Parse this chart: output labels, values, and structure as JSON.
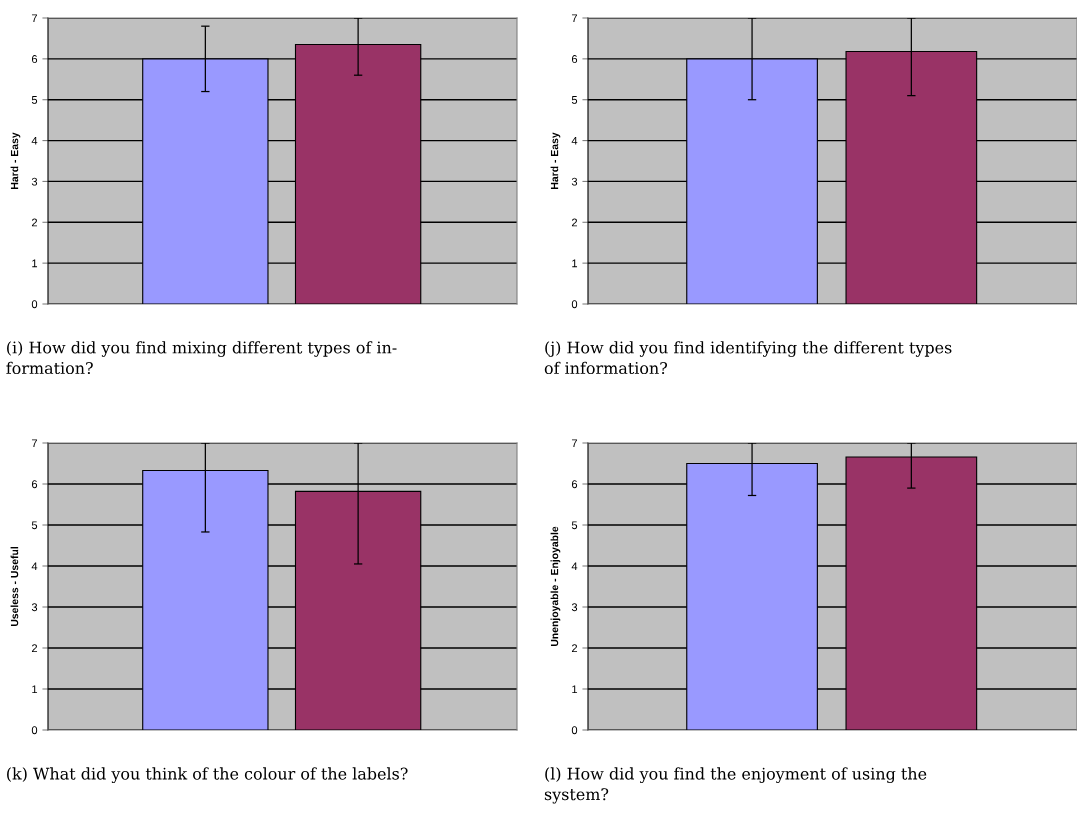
{
  "chart_data": [
    {
      "type": "bar",
      "categories": [
        null,
        null
      ],
      "series": [
        {
          "color": "#9999ff",
          "values": [
            6.0,
            null
          ],
          "errors": [
            [
              5.2,
              6.8
            ],
            null
          ]
        },
        {
          "color": "#993366",
          "values": [
            null,
            6.35
          ],
          "errors": [
            null,
            [
              5.6,
              7
            ]
          ]
        }
      ],
      "ylabel": "Hard - Easy",
      "ylim": [
        0,
        7
      ],
      "yticks": [
        0,
        1,
        2,
        3,
        4,
        5,
        6,
        7
      ],
      "grid": "y",
      "tick_labels": "y",
      "annotations": [
        "(i) How did you find mixing different types of in-\nformation?"
      ]
    },
    {
      "type": "bar",
      "categories": [
        null,
        null
      ],
      "series": [
        {
          "color": "#9999ff",
          "values": [
            6.0,
            null
          ],
          "errors": [
            [
              5.0,
              7.0
            ],
            null
          ]
        },
        {
          "color": "#993366",
          "values": [
            null,
            6.18
          ],
          "errors": [
            null,
            [
              5.1,
              7
            ]
          ]
        }
      ],
      "ylabel": "Hard - Easy",
      "ylim": [
        0,
        7
      ],
      "yticks": [
        0,
        1,
        2,
        3,
        4,
        5,
        6,
        7
      ],
      "grid": "y",
      "tick_labels": "y",
      "annotations": [
        "(j) How did you find identifying the different types\nof information?"
      ]
    },
    {
      "type": "bar",
      "categories": [
        null,
        null
      ],
      "series": [
        {
          "color": "#9999ff",
          "values": [
            6.33,
            null
          ],
          "errors": [
            [
              4.83,
              7
            ],
            null
          ]
        },
        {
          "color": "#993366",
          "values": [
            null,
            5.82
          ],
          "errors": [
            null,
            [
              4.05,
              7
            ]
          ]
        }
      ],
      "ylabel": "Useless - Useful",
      "ylim": [
        0,
        7
      ],
      "yticks": [
        0,
        1,
        2,
        3,
        4,
        5,
        6,
        7
      ],
      "grid": "y",
      "tick_labels": "y",
      "annotations": [
        "(k) What did you think of the colour of the labels?"
      ]
    },
    {
      "type": "bar",
      "categories": [
        null,
        null
      ],
      "series": [
        {
          "color": "#9999ff",
          "values": [
            6.5,
            null
          ],
          "errors": [
            [
              5.72,
              7
            ],
            null
          ]
        },
        {
          "color": "#993366",
          "values": [
            null,
            6.66
          ],
          "errors": [
            null,
            [
              5.9,
              7
            ]
          ]
        }
      ],
      "ylabel": "Unenjoyable - Enjoyable",
      "ylim": [
        0,
        7
      ],
      "yticks": [
        0,
        1,
        2,
        3,
        4,
        5,
        6,
        7
      ],
      "grid": "y",
      "tick_labels": "y",
      "annotations": [
        "(l) How did you find the enjoyment of using the\nsystem?"
      ]
    }
  ]
}
